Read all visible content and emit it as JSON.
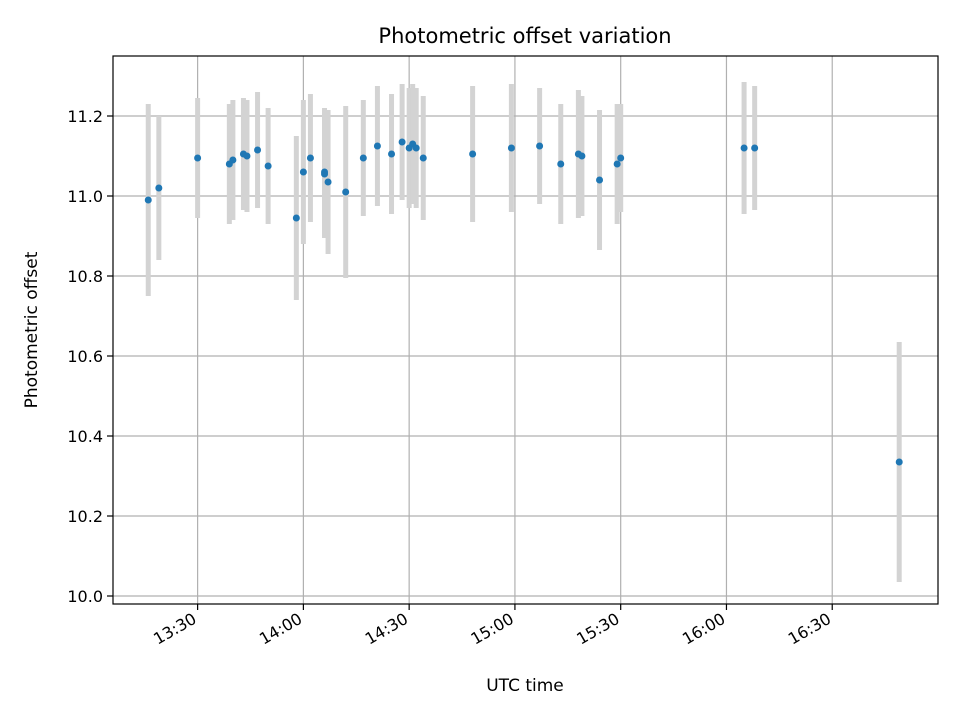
{
  "chart_data": {
    "type": "scatter",
    "title": "Photometric offset variation",
    "xlabel": "UTC time",
    "ylabel": "Photometric offset",
    "xlim": [
      "13:06",
      "17:00"
    ],
    "ylim": [
      9.98,
      11.35
    ],
    "x_ticks": [
      "13:30",
      "14:00",
      "14:30",
      "15:00",
      "15:30",
      "16:00",
      "16:30"
    ],
    "y_ticks": [
      "10.0",
      "10.2",
      "10.4",
      "10.6",
      "10.8",
      "11.0",
      "11.2"
    ],
    "grid": true,
    "colors": {
      "points": "#1f77b4",
      "error_bars": "#d3d3d3"
    },
    "points": [
      {
        "x": "13:16",
        "y": 10.99,
        "err": 0.24
      },
      {
        "x": "13:19",
        "y": 11.02,
        "err": 0.18
      },
      {
        "x": "13:30",
        "y": 11.095,
        "err": 0.15
      },
      {
        "x": "13:39",
        "y": 11.08,
        "err": 0.15
      },
      {
        "x": "13:40",
        "y": 11.09,
        "err": 0.15
      },
      {
        "x": "13:43",
        "y": 11.105,
        "err": 0.14
      },
      {
        "x": "13:44",
        "y": 11.1,
        "err": 0.14
      },
      {
        "x": "13:47",
        "y": 11.115,
        "err": 0.145
      },
      {
        "x": "13:50",
        "y": 11.075,
        "err": 0.145
      },
      {
        "x": "13:58",
        "y": 10.945,
        "err": 0.205
      },
      {
        "x": "14:00",
        "y": 11.06,
        "err": 0.18
      },
      {
        "x": "14:02",
        "y": 11.095,
        "err": 0.16
      },
      {
        "x": "14:06",
        "y": 11.06,
        "err": 0.16
      },
      {
        "x": "14:06",
        "y": 11.055,
        "err": 0.16
      },
      {
        "x": "14:07",
        "y": 11.035,
        "err": 0.18
      },
      {
        "x": "14:12",
        "y": 11.01,
        "err": 0.215
      },
      {
        "x": "14:17",
        "y": 11.095,
        "err": 0.145
      },
      {
        "x": "14:21",
        "y": 11.125,
        "err": 0.15
      },
      {
        "x": "14:25",
        "y": 11.105,
        "err": 0.15
      },
      {
        "x": "14:28",
        "y": 11.135,
        "err": 0.145
      },
      {
        "x": "14:30",
        "y": 11.12,
        "err": 0.15
      },
      {
        "x": "14:31",
        "y": 11.13,
        "err": 0.15
      },
      {
        "x": "14:32",
        "y": 11.12,
        "err": 0.15
      },
      {
        "x": "14:34",
        "y": 11.095,
        "err": 0.155
      },
      {
        "x": "14:48",
        "y": 11.105,
        "err": 0.17
      },
      {
        "x": "14:59",
        "y": 11.12,
        "err": 0.16
      },
      {
        "x": "15:07",
        "y": 11.125,
        "err": 0.145
      },
      {
        "x": "15:13",
        "y": 11.08,
        "err": 0.15
      },
      {
        "x": "15:18",
        "y": 11.105,
        "err": 0.16
      },
      {
        "x": "15:19",
        "y": 11.1,
        "err": 0.15
      },
      {
        "x": "15:24",
        "y": 11.04,
        "err": 0.175
      },
      {
        "x": "15:29",
        "y": 11.08,
        "err": 0.15
      },
      {
        "x": "15:30",
        "y": 11.095,
        "err": 0.135
      },
      {
        "x": "16:05",
        "y": 11.12,
        "err": 0.165
      },
      {
        "x": "16:08",
        "y": 11.12,
        "err": 0.155
      },
      {
        "x": "16:49",
        "y": 10.335,
        "err": 0.3
      }
    ]
  }
}
